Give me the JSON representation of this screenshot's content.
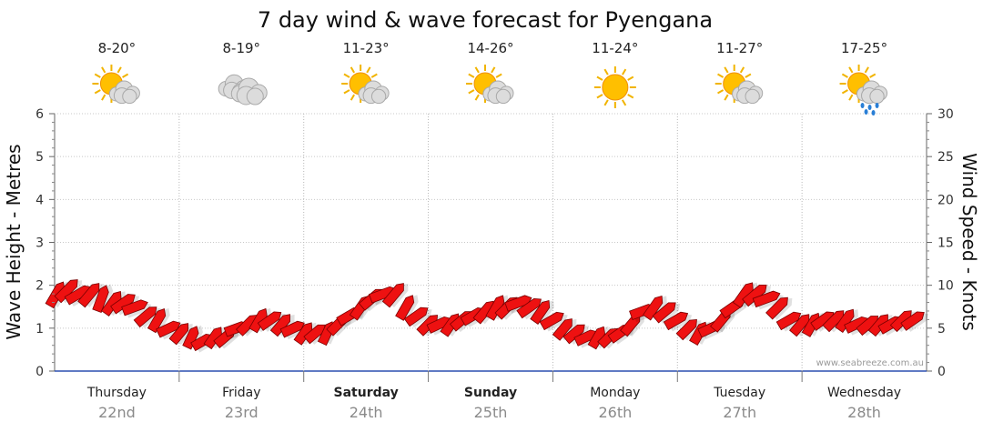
{
  "chart_data": {
    "type": "line",
    "title": "7 day wind & wave forecast for Pyengana",
    "ylabel_left": "Wave Height - Metres",
    "ylabel_right": "Wind Speed - Knots",
    "ylim_left": [
      0,
      6
    ],
    "ylim_right": [
      0,
      30
    ],
    "left_ticks": [
      "0",
      "1",
      "2",
      "3",
      "4",
      "5",
      "6"
    ],
    "right_ticks": [
      "0",
      "5",
      "10",
      "15",
      "20",
      "25",
      "30"
    ],
    "grid": true,
    "watermark": "www.seabreeze.com.au",
    "days": [
      {
        "day": "Thursday",
        "date": "22nd",
        "temp": "8-20°",
        "icon": "sun-cloud-icon",
        "bold": false
      },
      {
        "day": "Friday",
        "date": "23rd",
        "temp": "8-19°",
        "icon": "cloud-icon",
        "bold": false
      },
      {
        "day": "Saturday",
        "date": "24th",
        "temp": "11-23°",
        "icon": "sun-cloud-icon",
        "bold": true
      },
      {
        "day": "Sunday",
        "date": "25th",
        "temp": "14-26°",
        "icon": "sun-cloud-icon",
        "bold": true
      },
      {
        "day": "Monday",
        "date": "26th",
        "temp": "11-24°",
        "icon": "sun-icon",
        "bold": false
      },
      {
        "day": "Tuesday",
        "date": "27th",
        "temp": "11-27°",
        "icon": "sun-cloud-icon",
        "bold": false
      },
      {
        "day": "Wednesday",
        "date": "28th",
        "temp": "17-25°",
        "icon": "sun-cloud-rain-icon",
        "bold": false
      }
    ],
    "series": [
      {
        "name": "Wind Speed - Knots",
        "color": "#ee1111",
        "wind_knots": [
          9,
          9.5,
          9.2,
          8.8,
          8.5,
          8.2,
          7.8,
          7.3,
          6.7,
          6,
          5.2,
          4.4,
          3.8,
          3.5,
          3.8,
          4.2,
          4.9,
          5.7,
          6.2,
          6.1,
          5.6,
          5,
          4.6,
          4.4,
          4.6,
          5.3,
          6.3,
          7.5,
          8.6,
          9.1,
          8.8,
          7.6,
          6.3,
          5.6,
          5.5,
          5.6,
          5.9,
          6.3,
          6.8,
          7.3,
          7.7,
          8,
          7.6,
          6.8,
          5.8,
          5.1,
          4.6,
          4.1,
          3.8,
          3.9,
          4.5,
          5.6,
          6.8,
          7.5,
          7.1,
          6,
          5,
          4.6,
          5,
          6.2,
          7.6,
          8.8,
          9.2,
          8.6,
          7.4,
          6.2,
          5.6,
          5.6,
          5.8,
          6,
          5.8,
          5.5,
          5.3,
          5.4,
          5.6,
          5.9,
          6.1
        ],
        "wind_dir_deg": [
          30,
          45,
          60,
          40,
          20,
          35,
          55,
          70,
          50,
          30,
          65,
          40,
          25,
          60,
          35,
          50,
          70,
          45,
          30,
          55,
          40,
          65,
          35,
          50,
          25,
          45,
          60,
          35,
          50,
          70,
          40,
          30,
          55,
          45,
          65,
          35,
          50,
          60,
          40,
          30,
          45,
          70,
          55,
          35,
          60,
          40,
          50,
          65,
          30,
          45,
          55,
          40,
          70,
          35,
          50,
          60,
          45,
          30,
          65,
          40,
          55,
          35,
          50,
          70,
          45,
          60,
          40,
          30,
          55,
          45,
          35,
          65,
          50,
          40,
          60,
          45,
          55
        ],
        "wave_m": [
          1.8,
          1.9,
          1.8,
          1.8,
          1.7,
          1.6,
          1.6,
          1.5,
          1.3,
          1.2,
          1,
          0.9,
          0.8,
          0.7,
          0.8,
          0.8,
          1,
          1.1,
          1.2,
          1.2,
          1.1,
          1,
          0.9,
          0.9,
          0.9,
          1.1,
          1.3,
          1.5,
          1.7,
          1.8,
          1.8,
          1.5,
          1.3,
          1.1,
          1.1,
          1.1,
          1.2,
          1.3,
          1.4,
          1.5,
          1.5,
          1.6,
          1.5,
          1.4,
          1.2,
          1,
          0.9,
          0.8,
          0.8,
          0.8,
          0.9,
          1.1,
          1.4,
          1.5,
          1.4,
          1.2,
          1,
          0.9,
          1,
          1.2,
          1.5,
          1.8,
          1.8,
          1.7,
          1.5,
          1.2,
          1.1,
          1.1,
          1.2,
          1.2,
          1.2,
          1.1,
          1.1,
          1.1,
          1.1,
          1.2,
          1.2
        ]
      }
    ]
  }
}
